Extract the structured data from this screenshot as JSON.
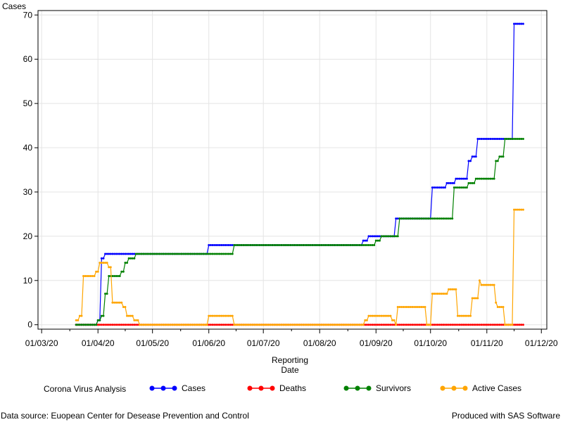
{
  "chart_data": {
    "type": "line",
    "ylabel": "Cases",
    "xlabel_lines": [
      "Reporting",
      "Date"
    ],
    "x_ticks": [
      "01/03/20",
      "01/04/20",
      "01/05/20",
      "01/06/20",
      "01/07/20",
      "01/08/20",
      "01/09/20",
      "01/10/20",
      "01/11/20",
      "01/12/20"
    ],
    "y_ticks": [
      0,
      10,
      20,
      30,
      40,
      50,
      60,
      70
    ],
    "ylim": [
      -1,
      71
    ],
    "xlim": [
      "2020-02-28",
      "2020-12-04"
    ],
    "grid": true,
    "legend_title": "Corona Virus Analysis",
    "legend_position": "bottom",
    "series": [
      {
        "name": "Cases",
        "color": "#0000ff",
        "points": [
          [
            "2020-03-20",
            0
          ],
          [
            "2020-03-31",
            0
          ],
          [
            "2020-04-01",
            1
          ],
          [
            "2020-04-03",
            15
          ],
          [
            "2020-04-05",
            16
          ],
          [
            "2020-04-26",
            16
          ],
          [
            "2020-06-01",
            18
          ],
          [
            "2020-06-15",
            18
          ],
          [
            "2020-08-25",
            19
          ],
          [
            "2020-08-28",
            20
          ],
          [
            "2020-09-10",
            20
          ],
          [
            "2020-09-12",
            24
          ],
          [
            "2020-10-01",
            24
          ],
          [
            "2020-10-02",
            31
          ],
          [
            "2020-10-10",
            32
          ],
          [
            "2020-10-15",
            33
          ],
          [
            "2020-10-22",
            37
          ],
          [
            "2020-10-24",
            38
          ],
          [
            "2020-10-27",
            42
          ],
          [
            "2020-11-15",
            42
          ],
          [
            "2020-11-16",
            68
          ],
          [
            "2020-11-21",
            68
          ]
        ]
      },
      {
        "name": "Deaths",
        "color": "#ff0000",
        "points": [
          [
            "2020-03-20",
            0
          ],
          [
            "2020-11-21",
            0
          ]
        ]
      },
      {
        "name": "Survivors",
        "color": "#008000",
        "points": [
          [
            "2020-03-20",
            0
          ],
          [
            "2020-03-31",
            0
          ],
          [
            "2020-04-01",
            1
          ],
          [
            "2020-04-03",
            2
          ],
          [
            "2020-04-05",
            7
          ],
          [
            "2020-04-07",
            11
          ],
          [
            "2020-04-12",
            11
          ],
          [
            "2020-04-14",
            12
          ],
          [
            "2020-04-16",
            14
          ],
          [
            "2020-04-18",
            15
          ],
          [
            "2020-04-22",
            16
          ],
          [
            "2020-06-14",
            16
          ],
          [
            "2020-06-15",
            18
          ],
          [
            "2020-08-28",
            18
          ],
          [
            "2020-09-01",
            19
          ],
          [
            "2020-09-04",
            20
          ],
          [
            "2020-09-12",
            20
          ],
          [
            "2020-09-14",
            24
          ],
          [
            "2020-10-13",
            24
          ],
          [
            "2020-10-14",
            31
          ],
          [
            "2020-10-22",
            32
          ],
          [
            "2020-10-26",
            33
          ],
          [
            "2020-11-05",
            33
          ],
          [
            "2020-11-06",
            37
          ],
          [
            "2020-11-08",
            38
          ],
          [
            "2020-11-11",
            42
          ],
          [
            "2020-11-21",
            42
          ]
        ]
      },
      {
        "name": "Active Cases",
        "color": "#ffa500",
        "points": [
          [
            "2020-03-20",
            1
          ],
          [
            "2020-03-22",
            2
          ],
          [
            "2020-03-24",
            11
          ],
          [
            "2020-03-30",
            11
          ],
          [
            "2020-03-31",
            12
          ],
          [
            "2020-04-02",
            14
          ],
          [
            "2020-04-06",
            14
          ],
          [
            "2020-04-07",
            13
          ],
          [
            "2020-04-09",
            5
          ],
          [
            "2020-04-14",
            5
          ],
          [
            "2020-04-15",
            4
          ],
          [
            "2020-04-17",
            2
          ],
          [
            "2020-04-20",
            2
          ],
          [
            "2020-04-21",
            1
          ],
          [
            "2020-04-23",
            1
          ],
          [
            "2020-04-24",
            0
          ],
          [
            "2020-05-31",
            0
          ],
          [
            "2020-06-01",
            2
          ],
          [
            "2020-06-14",
            2
          ],
          [
            "2020-06-15",
            0
          ],
          [
            "2020-08-25",
            0
          ],
          [
            "2020-08-26",
            1
          ],
          [
            "2020-08-28",
            2
          ],
          [
            "2020-09-09",
            2
          ],
          [
            "2020-09-10",
            1
          ],
          [
            "2020-09-12",
            0
          ],
          [
            "2020-09-13",
            4
          ],
          [
            "2020-09-28",
            4
          ],
          [
            "2020-09-29",
            0
          ],
          [
            "2020-10-01",
            0
          ],
          [
            "2020-10-02",
            7
          ],
          [
            "2020-10-10",
            7
          ],
          [
            "2020-10-11",
            8
          ],
          [
            "2020-10-15",
            8
          ],
          [
            "2020-10-16",
            2
          ],
          [
            "2020-10-23",
            2
          ],
          [
            "2020-10-24",
            6
          ],
          [
            "2020-10-27",
            6
          ],
          [
            "2020-10-28",
            10
          ],
          [
            "2020-10-29",
            9
          ],
          [
            "2020-11-05",
            9
          ],
          [
            "2020-11-06",
            5
          ],
          [
            "2020-11-07",
            4
          ],
          [
            "2020-11-09",
            4
          ],
          [
            "2020-11-11",
            0
          ],
          [
            "2020-11-15",
            0
          ],
          [
            "2020-11-16",
            26
          ],
          [
            "2020-11-21",
            26
          ]
        ]
      }
    ]
  },
  "footer": {
    "left": "Data source: Euopean Center for Desease Prevention and Control",
    "right": "Produced with SAS Software"
  }
}
